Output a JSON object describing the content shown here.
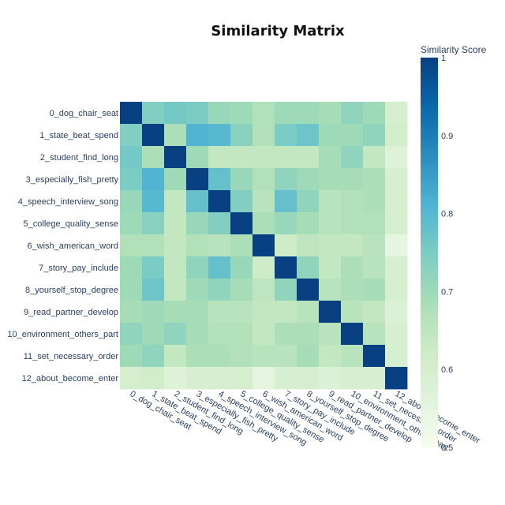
{
  "chart_data": {
    "type": "heatmap",
    "title": "Similarity Matrix",
    "labels": [
      "0_dog_chair_seat",
      "1_state_beat_spend",
      "2_student_find_long",
      "3_especially_fish_pretty",
      "4_speech_interview_song",
      "5_college_quality_sense",
      "6_wish_american_word",
      "7_story_pay_include",
      "8_yourself_stop_degree",
      "9_read_partner_develop",
      "10_environment_others_part",
      "11_set_necessary_order",
      "12_about_become_enter"
    ],
    "matrix": [
      [
        1.0,
        0.74,
        0.76,
        0.75,
        0.71,
        0.7,
        0.67,
        0.7,
        0.7,
        0.69,
        0.72,
        0.7,
        0.6
      ],
      [
        0.74,
        1.0,
        0.68,
        0.81,
        0.8,
        0.73,
        0.67,
        0.75,
        0.77,
        0.7,
        0.7,
        0.72,
        0.61
      ],
      [
        0.76,
        0.68,
        1.0,
        0.7,
        0.64,
        0.64,
        0.64,
        0.64,
        0.64,
        0.69,
        0.72,
        0.64,
        0.57
      ],
      [
        0.75,
        0.81,
        0.7,
        1.0,
        0.78,
        0.71,
        0.67,
        0.72,
        0.7,
        0.69,
        0.69,
        0.68,
        0.59
      ],
      [
        0.71,
        0.8,
        0.64,
        0.78,
        1.0,
        0.74,
        0.66,
        0.78,
        0.72,
        0.66,
        0.67,
        0.68,
        0.6
      ],
      [
        0.7,
        0.73,
        0.64,
        0.71,
        0.74,
        1.0,
        0.68,
        0.71,
        0.69,
        0.66,
        0.67,
        0.67,
        0.6
      ],
      [
        0.67,
        0.67,
        0.64,
        0.67,
        0.66,
        0.68,
        1.0,
        0.62,
        0.65,
        0.64,
        0.64,
        0.66,
        0.55
      ],
      [
        0.7,
        0.75,
        0.64,
        0.72,
        0.78,
        0.71,
        0.62,
        1.0,
        0.72,
        0.64,
        0.68,
        0.66,
        0.59
      ],
      [
        0.7,
        0.77,
        0.64,
        0.7,
        0.72,
        0.69,
        0.65,
        0.72,
        1.0,
        0.66,
        0.68,
        0.69,
        0.6
      ],
      [
        0.69,
        0.7,
        0.69,
        0.69,
        0.66,
        0.66,
        0.64,
        0.64,
        0.66,
        1.0,
        0.66,
        0.64,
        0.58
      ],
      [
        0.72,
        0.7,
        0.72,
        0.69,
        0.67,
        0.67,
        0.64,
        0.68,
        0.68,
        0.66,
        1.0,
        0.66,
        0.59
      ],
      [
        0.7,
        0.72,
        0.64,
        0.68,
        0.68,
        0.67,
        0.66,
        0.66,
        0.69,
        0.64,
        0.66,
        1.0,
        0.59
      ],
      [
        0.6,
        0.61,
        0.57,
        0.59,
        0.6,
        0.6,
        0.55,
        0.59,
        0.6,
        0.58,
        0.59,
        0.59,
        1.0
      ]
    ],
    "colorbar": {
      "title": "Similarity Score",
      "range": [
        0.5,
        1
      ],
      "ticks": [
        0.5,
        0.6,
        0.7,
        0.8,
        0.9,
        1
      ]
    },
    "colorscale": [
      [
        0.0,
        "#f7fcf0"
      ],
      [
        0.125,
        "#e0f3db"
      ],
      [
        0.25,
        "#ccebc5"
      ],
      [
        0.375,
        "#a8ddb5"
      ],
      [
        0.5,
        "#7bccc4"
      ],
      [
        0.625,
        "#4eb3d3"
      ],
      [
        0.75,
        "#2b8cbe"
      ],
      [
        0.875,
        "#0868ac"
      ],
      [
        1.0,
        "#084081"
      ]
    ]
  }
}
